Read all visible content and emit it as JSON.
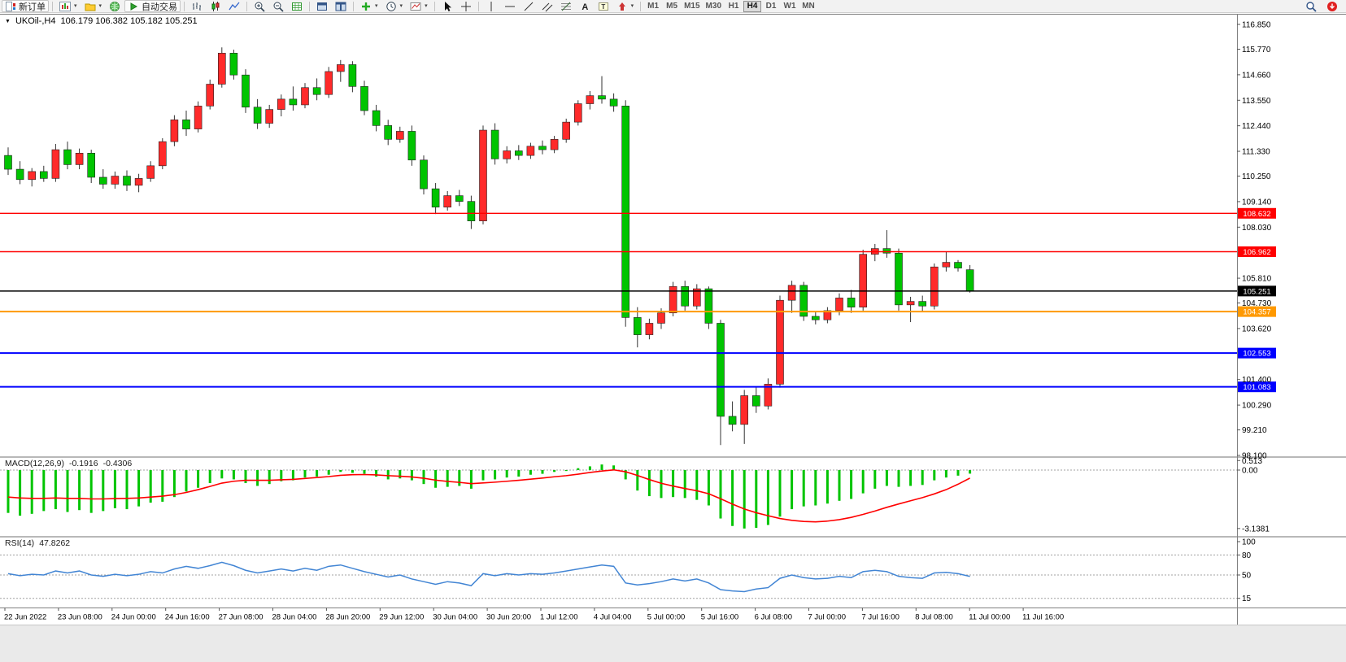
{
  "ui": {
    "toolbar": {
      "new_order_label": "新订单",
      "auto_trading_label": "自动交易",
      "left_icons": [
        "new-order-icon",
        "new-chart-icon",
        "profiles-icon",
        "market-watch-icon",
        "auto-trading-icon"
      ],
      "chart_icons": [
        "bar-chart-icon",
        "candlestick-icon",
        "line-chart-icon",
        "zoom-in-icon",
        "zoom-out-icon",
        "grid-icon",
        "new-window-icon",
        "tile-windows-icon",
        "indicators-add-icon",
        "periods-icon",
        "templates-icon"
      ],
      "tool_icons": [
        "cursor-icon",
        "crosshair-icon",
        "vertical-line-icon",
        "horizontal-line-icon",
        "trendline-icon",
        "channel-icon",
        "fibonacci-icon",
        "text-icon",
        "text-label-icon",
        "arrows-icon"
      ],
      "right_icons": [
        "search-icon",
        "notification-icon"
      ],
      "timeframes": [
        "M1",
        "M5",
        "M15",
        "M30",
        "H1",
        "H4",
        "D1",
        "W1",
        "MN"
      ],
      "active_timeframe": "H4"
    }
  },
  "chart_data": {
    "type": "candlestick",
    "symbol": "UKOil-",
    "timeframe": "H4",
    "title": "UKOil-,H4",
    "ohlc_display": "106.179 106.382 105.182 105.251",
    "up_color": "#ff2a2a",
    "down_color": "#00c400",
    "price_axis_range": [
      98.1,
      116.85
    ],
    "price_axis_labels": [
      "116.850",
      "115.770",
      "114.660",
      "113.550",
      "112.440",
      "111.330",
      "110.250",
      "109.140",
      "108.030",
      "105.810",
      "104.730",
      "103.620",
      "101.400",
      "100.290",
      "99.210",
      "98.100"
    ],
    "hlines": [
      {
        "price": 108.632,
        "label": "108.632",
        "color": "#ff0000",
        "width": 1.4
      },
      {
        "price": 106.962,
        "label": "106.962",
        "color": "#ff0000",
        "width": 1.4
      },
      {
        "price": 105.251,
        "label": "105.251",
        "color": "#000000",
        "width": 1.4
      },
      {
        "price": 104.357,
        "label": "104.357",
        "color": "#ff9900",
        "width": 2
      },
      {
        "price": 102.553,
        "label": "102.553",
        "color": "#0000ff",
        "width": 2
      },
      {
        "price": 101.083,
        "label": "101.083",
        "color": "#0000ff",
        "width": 2
      }
    ],
    "time_labels": [
      "22 Jun 2022",
      "23 Jun 08:00",
      "24 Jun 00:00",
      "24 Jun 16:00",
      "27 Jun 08:00",
      "28 Jun 04:00",
      "28 Jun 20:00",
      "29 Jun 12:00",
      "30 Jun 04:00",
      "30 Jun 20:00",
      "1 Jul 12:00",
      "4 Jul 04:00",
      "5 Jul 00:00",
      "5 Jul 16:00",
      "6 Jul 08:00",
      "7 Jul 00:00",
      "7 Jul 16:00",
      "8 Jul 08:00",
      "11 Jul 00:00",
      "11 Jul 16:00"
    ],
    "candles": [
      [
        111.15,
        111.5,
        110.3,
        110.55
      ],
      [
        110.55,
        110.9,
        109.9,
        110.1
      ],
      [
        110.1,
        110.6,
        109.8,
        110.45
      ],
      [
        110.45,
        110.7,
        110.0,
        110.15
      ],
      [
        110.15,
        111.65,
        110.0,
        111.4
      ],
      [
        111.4,
        111.75,
        110.55,
        110.75
      ],
      [
        110.75,
        111.45,
        110.55,
        111.25
      ],
      [
        111.25,
        111.4,
        109.95,
        110.2
      ],
      [
        110.2,
        110.55,
        109.7,
        109.9
      ],
      [
        109.9,
        110.45,
        109.7,
        110.25
      ],
      [
        110.25,
        110.5,
        109.6,
        109.85
      ],
      [
        109.85,
        110.35,
        109.55,
        110.15
      ],
      [
        110.15,
        110.9,
        110.0,
        110.7
      ],
      [
        110.7,
        111.9,
        110.55,
        111.75
      ],
      [
        111.75,
        112.9,
        111.55,
        112.7
      ],
      [
        112.7,
        113.1,
        112.0,
        112.3
      ],
      [
        112.3,
        113.5,
        112.15,
        113.3
      ],
      [
        113.3,
        114.45,
        113.15,
        114.25
      ],
      [
        114.25,
        115.85,
        114.1,
        115.6
      ],
      [
        115.6,
        115.75,
        114.45,
        114.65
      ],
      [
        114.65,
        114.9,
        113.0,
        113.25
      ],
      [
        113.25,
        113.6,
        112.3,
        112.55
      ],
      [
        112.55,
        113.35,
        112.35,
        113.15
      ],
      [
        113.15,
        113.8,
        112.85,
        113.6
      ],
      [
        113.6,
        114.15,
        113.1,
        113.35
      ],
      [
        113.35,
        114.3,
        113.2,
        114.1
      ],
      [
        114.1,
        114.5,
        113.55,
        113.8
      ],
      [
        113.8,
        115.0,
        113.65,
        114.8
      ],
      [
        114.8,
        115.3,
        114.35,
        115.1
      ],
      [
        115.1,
        115.25,
        113.9,
        114.15
      ],
      [
        114.15,
        114.4,
        112.9,
        113.1
      ],
      [
        113.1,
        113.35,
        112.2,
        112.45
      ],
      [
        112.45,
        112.7,
        111.6,
        111.85
      ],
      [
        111.85,
        112.4,
        111.7,
        112.2
      ],
      [
        112.2,
        112.45,
        110.7,
        110.95
      ],
      [
        110.95,
        111.15,
        109.45,
        109.7
      ],
      [
        109.7,
        109.95,
        108.6,
        108.9
      ],
      [
        108.9,
        109.6,
        108.75,
        109.4
      ],
      [
        109.4,
        109.65,
        108.95,
        109.15
      ],
      [
        109.15,
        109.4,
        107.95,
        108.3
      ],
      [
        108.3,
        112.45,
        108.15,
        112.25
      ],
      [
        112.25,
        112.55,
        110.75,
        111.0
      ],
      [
        111.0,
        111.55,
        110.8,
        111.35
      ],
      [
        111.35,
        111.6,
        110.95,
        111.15
      ],
      [
        111.15,
        111.7,
        111.0,
        111.55
      ],
      [
        111.55,
        111.8,
        111.2,
        111.4
      ],
      [
        111.4,
        112.0,
        111.25,
        111.85
      ],
      [
        111.85,
        112.75,
        111.7,
        112.6
      ],
      [
        112.6,
        113.55,
        112.45,
        113.4
      ],
      [
        113.4,
        113.95,
        113.15,
        113.75
      ],
      [
        113.75,
        114.6,
        113.4,
        113.6
      ],
      [
        113.6,
        113.85,
        113.05,
        113.3
      ],
      [
        113.3,
        113.55,
        103.7,
        104.1
      ],
      [
        104.1,
        104.55,
        102.8,
        103.35
      ],
      [
        103.35,
        104.05,
        103.15,
        103.85
      ],
      [
        103.85,
        104.5,
        103.6,
        104.3
      ],
      [
        104.3,
        105.65,
        104.15,
        105.45
      ],
      [
        105.45,
        105.7,
        104.4,
        104.6
      ],
      [
        104.6,
        105.55,
        104.45,
        105.35
      ],
      [
        105.35,
        105.45,
        103.6,
        103.85
      ],
      [
        103.85,
        104.0,
        98.55,
        99.8
      ],
      [
        99.8,
        100.45,
        99.15,
        99.45
      ],
      [
        99.45,
        100.95,
        98.6,
        100.7
      ],
      [
        100.7,
        101.1,
        99.95,
        100.25
      ],
      [
        100.25,
        101.45,
        100.1,
        101.2
      ],
      [
        101.2,
        105.05,
        101.05,
        104.85
      ],
      [
        104.85,
        105.7,
        104.3,
        105.5
      ],
      [
        105.5,
        105.65,
        103.95,
        104.15
      ],
      [
        104.15,
        104.35,
        103.8,
        104.0
      ],
      [
        104.0,
        104.55,
        103.85,
        104.4
      ],
      [
        104.4,
        105.15,
        104.2,
        104.95
      ],
      [
        104.95,
        105.3,
        104.3,
        104.55
      ],
      [
        104.55,
        107.05,
        104.4,
        106.85
      ],
      [
        106.85,
        107.3,
        106.55,
        107.1
      ],
      [
        107.1,
        107.9,
        106.7,
        106.9
      ],
      [
        106.9,
        107.1,
        104.4,
        104.65
      ],
      [
        104.65,
        105.0,
        103.9,
        104.8
      ],
      [
        104.8,
        105.05,
        104.35,
        104.6
      ],
      [
        104.6,
        106.45,
        104.45,
        106.3
      ],
      [
        106.3,
        106.95,
        106.1,
        106.5
      ],
      [
        106.5,
        106.6,
        106.1,
        106.25
      ],
      [
        106.179,
        106.382,
        105.182,
        105.251
      ]
    ],
    "indicators": {
      "macd": {
        "name": "MACD(12,26,9)",
        "main_value": "-0.1916",
        "signal_value": "-0.4306",
        "axis_labels": [
          "0.513",
          "0.00",
          "-3.1381"
        ],
        "histogram_color": "#00c400",
        "signal_color": "#ff0000",
        "histogram": [
          -2.3,
          -2.45,
          -2.35,
          -2.2,
          -2.1,
          -2.25,
          -2.15,
          -2.3,
          -2.2,
          -2.05,
          -2.1,
          -1.95,
          -1.75,
          -1.7,
          -1.45,
          -1.15,
          -0.95,
          -0.7,
          -0.45,
          -0.5,
          -0.7,
          -0.85,
          -0.75,
          -0.6,
          -0.55,
          -0.4,
          -0.35,
          -0.25,
          -0.1,
          -0.15,
          -0.2,
          -0.35,
          -0.5,
          -0.45,
          -0.55,
          -0.75,
          -0.95,
          -0.9,
          -0.85,
          -1.0,
          -0.55,
          -0.5,
          -0.4,
          -0.35,
          -0.25,
          -0.2,
          -0.1,
          -0.05,
          0.1,
          0.2,
          0.3,
          0.25,
          -0.5,
          -1.1,
          -1.4,
          -1.5,
          -1.45,
          -1.5,
          -1.6,
          -1.9,
          -2.6,
          -3.0,
          -3.14,
          -3.1,
          -2.95,
          -2.5,
          -2.1,
          -1.95,
          -1.9,
          -1.8,
          -1.65,
          -1.55,
          -1.25,
          -1.0,
          -0.85,
          -0.9,
          -0.85,
          -0.8,
          -0.55,
          -0.4,
          -0.3,
          -0.1916
        ],
        "signal": [
          -1.45,
          -1.5,
          -1.52,
          -1.52,
          -1.5,
          -1.52,
          -1.52,
          -1.55,
          -1.55,
          -1.53,
          -1.52,
          -1.5,
          -1.45,
          -1.4,
          -1.32,
          -1.2,
          -1.05,
          -0.88,
          -0.7,
          -0.6,
          -0.55,
          -0.55,
          -0.55,
          -0.52,
          -0.5,
          -0.45,
          -0.4,
          -0.35,
          -0.28,
          -0.25,
          -0.24,
          -0.26,
          -0.3,
          -0.33,
          -0.37,
          -0.44,
          -0.54,
          -0.61,
          -0.66,
          -0.73,
          -0.69,
          -0.65,
          -0.6,
          -0.55,
          -0.49,
          -0.43,
          -0.36,
          -0.3,
          -0.22,
          -0.13,
          -0.05,
          0.01,
          -0.09,
          -0.29,
          -0.51,
          -0.71,
          -0.86,
          -0.99,
          -1.11,
          -1.27,
          -1.54,
          -1.83,
          -2.09,
          -2.29,
          -2.45,
          -2.6,
          -2.7,
          -2.76,
          -2.78,
          -2.74,
          -2.66,
          -2.54,
          -2.38,
          -2.2,
          -2.0,
          -1.82,
          -1.65,
          -1.48,
          -1.28,
          -1.05,
          -0.76,
          -0.4306
        ]
      },
      "rsi": {
        "name": "RSI(14)",
        "value": "47.8262",
        "axis_labels": [
          "100",
          "80",
          "50",
          "15"
        ],
        "levels": [
          80,
          50,
          15
        ],
        "line_color": "#4285d4",
        "values": [
          52,
          49,
          51,
          50,
          56,
          53,
          56,
          50,
          48,
          51,
          49,
          51,
          55,
          53,
          59,
          63,
          60,
          64,
          69,
          64,
          57,
          53,
          56,
          59,
          56,
          60,
          57,
          63,
          65,
          60,
          55,
          51,
          47,
          50,
          44,
          40,
          36,
          40,
          38,
          34,
          52,
          49,
          52,
          50,
          52,
          51,
          53,
          56,
          59,
          62,
          65,
          63,
          38,
          35,
          37,
          40,
          44,
          41,
          44,
          38,
          28,
          26,
          25,
          29,
          31,
          45,
          50,
          46,
          44,
          45,
          48,
          46,
          55,
          57,
          55,
          48,
          46,
          45,
          53,
          54,
          52,
          47.8262
        ]
      }
    }
  }
}
